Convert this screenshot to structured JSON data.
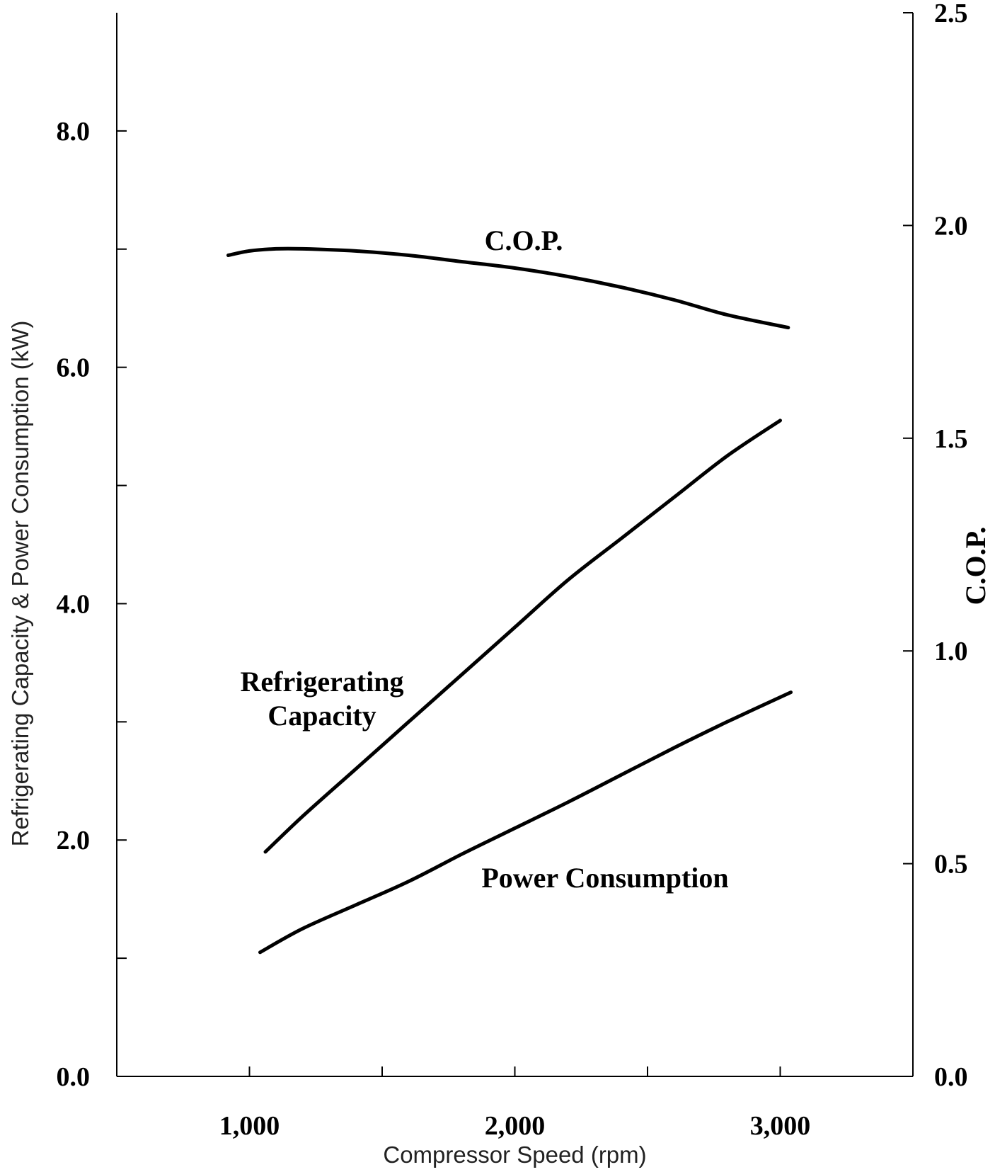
{
  "chart_data": {
    "type": "line",
    "xlabel": "Compressor Speed (rpm)",
    "ylabel": "Refrigerating Capacity & Power Consumption (kW)",
    "y2label": "C.O.P.",
    "xlim": [
      500,
      3500
    ],
    "ylim": [
      0,
      9
    ],
    "y2lim": [
      0,
      2.5
    ],
    "x_ticks": [
      1000,
      2000,
      3000
    ],
    "x_tick_labels": [
      "1,000",
      "2,000",
      "3,000"
    ],
    "x_minor_ticks": [
      1500,
      2500
    ],
    "y_ticks": [
      0,
      2,
      4,
      6,
      8
    ],
    "y_tick_labels": [
      "0.0",
      "2.0",
      "4.0",
      "6.0",
      "8.0"
    ],
    "y_minor_ticks": [
      1,
      3,
      5,
      7
    ],
    "y2_ticks": [
      0,
      0.5,
      1.0,
      1.5,
      2.0,
      2.5
    ],
    "y2_tick_labels": [
      "0.0",
      "0.5",
      "1.0",
      "1.5",
      "2.0",
      "2.5"
    ],
    "grid": false,
    "series": [
      {
        "name": "C.O.P.",
        "axis": "right",
        "x": [
          920,
          1000,
          1100,
          1200,
          1400,
          1600,
          1800,
          2000,
          2200,
          2400,
          2600,
          2800,
          3030
        ],
        "values": [
          1.93,
          1.94,
          1.945,
          1.945,
          1.94,
          1.93,
          1.915,
          1.9,
          1.88,
          1.855,
          1.825,
          1.79,
          1.76
        ]
      },
      {
        "name": "Refrigerating Capacity",
        "axis": "left",
        "x": [
          1060,
          1200,
          1400,
          1600,
          1800,
          2000,
          2200,
          2400,
          2600,
          2800,
          3000
        ],
        "values": [
          1.9,
          2.2,
          2.6,
          3.0,
          3.4,
          3.8,
          4.2,
          4.55,
          4.9,
          5.25,
          5.55
        ]
      },
      {
        "name": "Power Consumption",
        "axis": "left",
        "x": [
          1040,
          1200,
          1400,
          1600,
          1800,
          2000,
          2200,
          2400,
          2600,
          2800,
          3040
        ],
        "values": [
          1.05,
          1.25,
          1.45,
          1.65,
          1.88,
          2.1,
          2.32,
          2.55,
          2.78,
          3.0,
          3.25
        ]
      }
    ],
    "annotations": [
      {
        "text": "C.O.P.",
        "series": "C.O.P."
      },
      {
        "text": "Refrigerating",
        "series": "Refrigerating Capacity"
      },
      {
        "text": "Capacity",
        "series": "Refrigerating Capacity"
      },
      {
        "text": "Power Consumption",
        "series": "Power Consumption"
      }
    ]
  }
}
